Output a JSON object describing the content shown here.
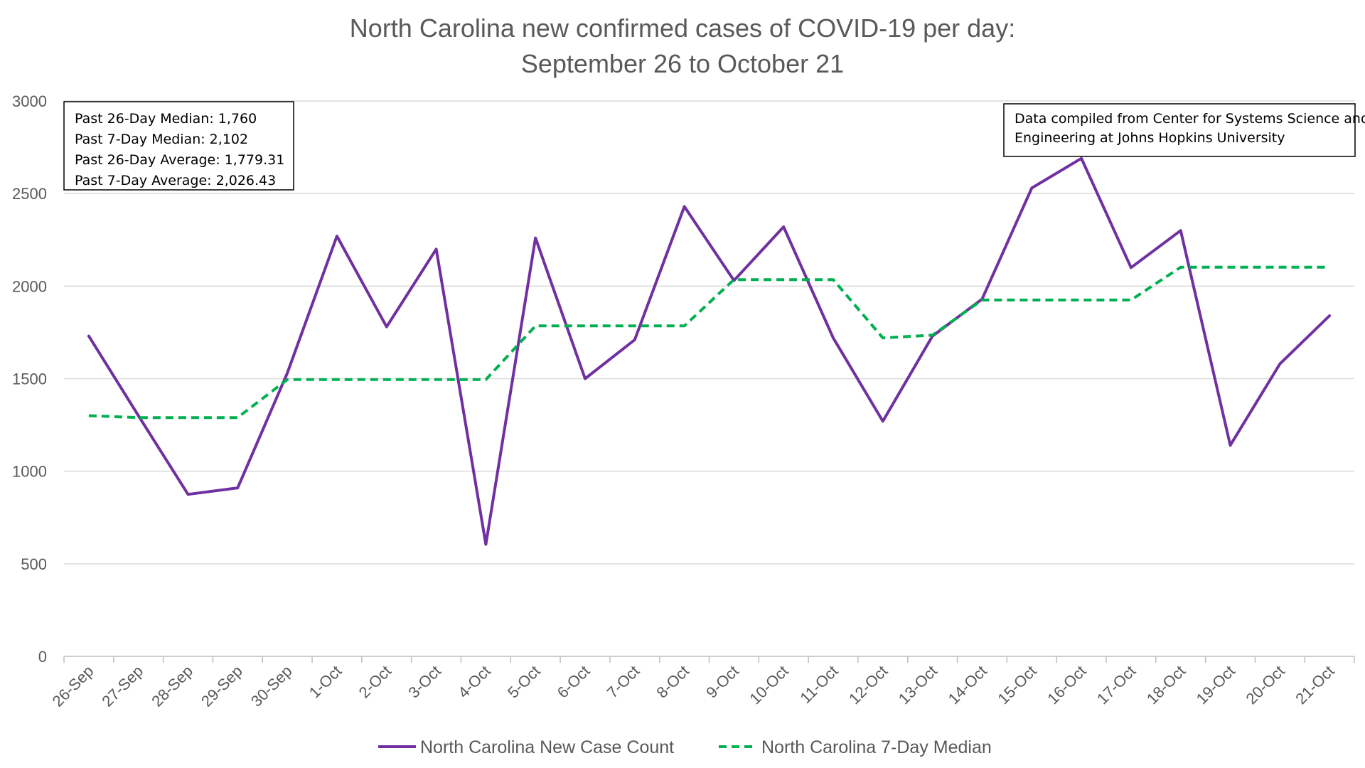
{
  "chart_data": {
    "type": "line",
    "title_lines": [
      "North Carolina new confirmed cases of COVID-19 per day:",
      "September 26 to October 21"
    ],
    "categories": [
      "26-Sep",
      "27-Sep",
      "28-Sep",
      "29-Sep",
      "30-Sep",
      "1-Oct",
      "2-Oct",
      "3-Oct",
      "4-Oct",
      "5-Oct",
      "6-Oct",
      "7-Oct",
      "8-Oct",
      "9-Oct",
      "10-Oct",
      "11-Oct",
      "12-Oct",
      "13-Oct",
      "14-Oct",
      "15-Oct",
      "16-Oct",
      "17-Oct",
      "18-Oct",
      "19-Oct",
      "20-Oct",
      "21-Oct"
    ],
    "ylim": [
      0,
      3000
    ],
    "yticks": [
      0,
      500,
      1000,
      1500,
      2000,
      2500,
      3000
    ],
    "grid": true,
    "legend_position": "bottom",
    "series": [
      {
        "name": "North Carolina New Case Count",
        "color": "#7030A0",
        "style": "solid",
        "values": [
          1730,
          1300,
          875,
          910,
          1530,
          2270,
          1780,
          2200,
          605,
          2260,
          1500,
          1710,
          2430,
          2030,
          2320,
          1720,
          1270,
          1730,
          1930,
          2530,
          2690,
          2100,
          2300,
          1140,
          1580,
          1840
        ]
      },
      {
        "name": "North Carolina 7-Day Median",
        "color": "#00B050",
        "style": "dashed",
        "values": [
          1300,
          1290,
          1290,
          1290,
          1495,
          1495,
          1495,
          1495,
          1495,
          1785,
          1785,
          1785,
          1785,
          2035,
          2035,
          2035,
          1720,
          1735,
          1925,
          1925,
          1925,
          1925,
          2102,
          2102,
          2102,
          2102
        ]
      }
    ],
    "stats_box": [
      "Past 26-Day Median: 1,760",
      "Past 7-Day Median: 2,102",
      "Past 26-Day Average: 1,779.31",
      "Past 7-Day Average: 2,026.43"
    ],
    "source_box": [
      "Data compiled from Center for Systems Science and",
      "Engineering at Johns Hopkins University"
    ]
  }
}
